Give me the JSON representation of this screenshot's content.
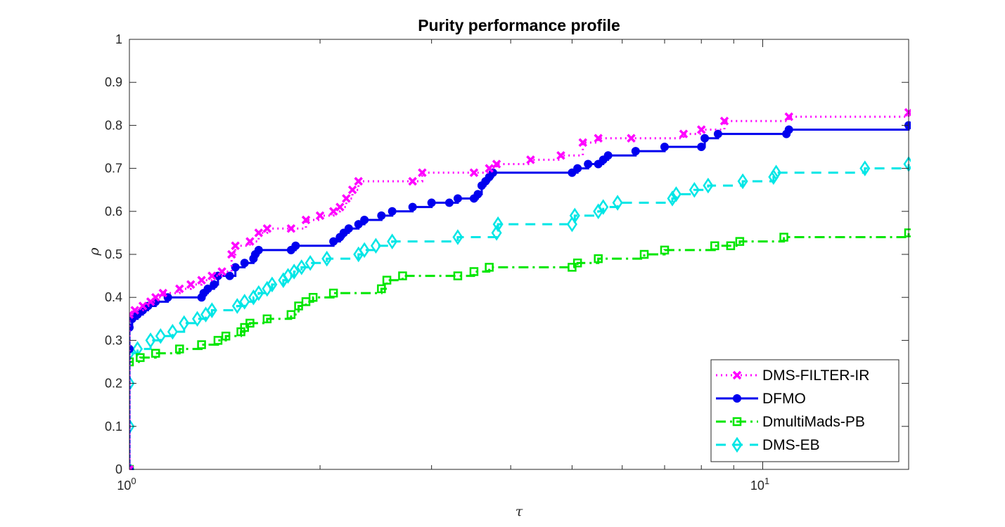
{
  "chart_data": {
    "type": "line",
    "step": true,
    "title": "Purity performance profile",
    "xlabel": "τ",
    "ylabel": "ρ",
    "xscale": "log",
    "xlim": [
      1,
      17
    ],
    "ylim": [
      0,
      1
    ],
    "x_ticks": [
      {
        "value": 1,
        "base": "10",
        "exp": "0"
      },
      {
        "value": 10,
        "base": "10",
        "exp": "1"
      }
    ],
    "y_ticks": [
      "0",
      "0.1",
      "0.2",
      "0.3",
      "0.4",
      "0.5",
      "0.6",
      "0.7",
      "0.8",
      "0.9",
      "1"
    ],
    "grid": false,
    "legend_position": "bottom-right",
    "series": [
      {
        "name": "DMS-FILTER-IR",
        "color": "#ff00ff",
        "line_style": "dotted",
        "marker": "x",
        "points": [
          [
            1.0,
            0.0
          ],
          [
            1.0,
            0.36
          ],
          [
            1.02,
            0.37
          ],
          [
            1.05,
            0.38
          ],
          [
            1.08,
            0.39
          ],
          [
            1.1,
            0.4
          ],
          [
            1.13,
            0.41
          ],
          [
            1.2,
            0.42
          ],
          [
            1.25,
            0.43
          ],
          [
            1.3,
            0.44
          ],
          [
            1.35,
            0.45
          ],
          [
            1.4,
            0.46
          ],
          [
            1.45,
            0.5
          ],
          [
            1.47,
            0.52
          ],
          [
            1.55,
            0.53
          ],
          [
            1.6,
            0.55
          ],
          [
            1.65,
            0.56
          ],
          [
            1.8,
            0.56
          ],
          [
            1.9,
            0.58
          ],
          [
            2.0,
            0.59
          ],
          [
            2.1,
            0.6
          ],
          [
            2.15,
            0.61
          ],
          [
            2.2,
            0.63
          ],
          [
            2.25,
            0.65
          ],
          [
            2.3,
            0.67
          ],
          [
            2.8,
            0.67
          ],
          [
            2.9,
            0.69
          ],
          [
            3.5,
            0.69
          ],
          [
            3.7,
            0.7
          ],
          [
            3.8,
            0.71
          ],
          [
            4.3,
            0.72
          ],
          [
            4.8,
            0.73
          ],
          [
            5.2,
            0.76
          ],
          [
            5.5,
            0.77
          ],
          [
            6.2,
            0.77
          ],
          [
            7.5,
            0.78
          ],
          [
            8.0,
            0.79
          ],
          [
            8.7,
            0.81
          ],
          [
            11.0,
            0.82
          ],
          [
            17.0,
            0.83
          ]
        ]
      },
      {
        "name": "DFMO",
        "color": "#0000ee",
        "line_style": "solid",
        "marker": "o",
        "points": [
          [
            1.0,
            0.0
          ],
          [
            1.0,
            0.28
          ],
          [
            1.0,
            0.33
          ],
          [
            1.01,
            0.35
          ],
          [
            1.03,
            0.36
          ],
          [
            1.05,
            0.37
          ],
          [
            1.07,
            0.38
          ],
          [
            1.1,
            0.39
          ],
          [
            1.15,
            0.4
          ],
          [
            1.3,
            0.4
          ],
          [
            1.31,
            0.41
          ],
          [
            1.33,
            0.42
          ],
          [
            1.36,
            0.43
          ],
          [
            1.38,
            0.45
          ],
          [
            1.44,
            0.45
          ],
          [
            1.47,
            0.47
          ],
          [
            1.52,
            0.48
          ],
          [
            1.57,
            0.49
          ],
          [
            1.58,
            0.5
          ],
          [
            1.6,
            0.51
          ],
          [
            1.8,
            0.51
          ],
          [
            1.83,
            0.52
          ],
          [
            2.1,
            0.53
          ],
          [
            2.15,
            0.54
          ],
          [
            2.18,
            0.55
          ],
          [
            2.22,
            0.56
          ],
          [
            2.3,
            0.57
          ],
          [
            2.35,
            0.58
          ],
          [
            2.5,
            0.59
          ],
          [
            2.6,
            0.6
          ],
          [
            2.8,
            0.61
          ],
          [
            3.0,
            0.62
          ],
          [
            3.2,
            0.62
          ],
          [
            3.3,
            0.63
          ],
          [
            3.5,
            0.63
          ],
          [
            3.55,
            0.64
          ],
          [
            3.6,
            0.66
          ],
          [
            3.65,
            0.67
          ],
          [
            3.7,
            0.68
          ],
          [
            3.75,
            0.69
          ],
          [
            5.0,
            0.69
          ],
          [
            5.1,
            0.7
          ],
          [
            5.3,
            0.71
          ],
          [
            5.5,
            0.71
          ],
          [
            5.6,
            0.72
          ],
          [
            5.7,
            0.73
          ],
          [
            6.3,
            0.74
          ],
          [
            7.0,
            0.75
          ],
          [
            8.0,
            0.75
          ],
          [
            8.1,
            0.77
          ],
          [
            8.5,
            0.78
          ],
          [
            10.9,
            0.78
          ],
          [
            11.0,
            0.79
          ],
          [
            17.0,
            0.8
          ]
        ]
      },
      {
        "name": "DmultiMads-PB",
        "color": "#00e600",
        "line_style": "dashdot",
        "marker": "s",
        "points": [
          [
            1.0,
            0.0
          ],
          [
            1.0,
            0.25
          ],
          [
            1.04,
            0.26
          ],
          [
            1.1,
            0.27
          ],
          [
            1.2,
            0.28
          ],
          [
            1.3,
            0.29
          ],
          [
            1.38,
            0.3
          ],
          [
            1.42,
            0.31
          ],
          [
            1.5,
            0.32
          ],
          [
            1.52,
            0.33
          ],
          [
            1.55,
            0.34
          ],
          [
            1.65,
            0.35
          ],
          [
            1.8,
            0.36
          ],
          [
            1.85,
            0.38
          ],
          [
            1.9,
            0.39
          ],
          [
            1.95,
            0.4
          ],
          [
            2.1,
            0.41
          ],
          [
            2.5,
            0.42
          ],
          [
            2.55,
            0.44
          ],
          [
            2.7,
            0.45
          ],
          [
            3.3,
            0.45
          ],
          [
            3.5,
            0.46
          ],
          [
            3.7,
            0.47
          ],
          [
            5.0,
            0.47
          ],
          [
            5.1,
            0.48
          ],
          [
            5.5,
            0.49
          ],
          [
            6.5,
            0.5
          ],
          [
            7.0,
            0.51
          ],
          [
            8.4,
            0.52
          ],
          [
            8.9,
            0.52
          ],
          [
            9.2,
            0.53
          ],
          [
            10.8,
            0.54
          ],
          [
            17.0,
            0.55
          ]
        ]
      },
      {
        "name": "DMS-EB",
        "color": "#00e6e6",
        "line_style": "dashed",
        "marker": "d",
        "points": [
          [
            1.0,
            0.0
          ],
          [
            1.0,
            0.1
          ],
          [
            1.0,
            0.2
          ],
          [
            1.0,
            0.27
          ],
          [
            1.03,
            0.28
          ],
          [
            1.08,
            0.3
          ],
          [
            1.12,
            0.31
          ],
          [
            1.17,
            0.32
          ],
          [
            1.22,
            0.34
          ],
          [
            1.28,
            0.35
          ],
          [
            1.32,
            0.36
          ],
          [
            1.35,
            0.37
          ],
          [
            1.48,
            0.38
          ],
          [
            1.52,
            0.39
          ],
          [
            1.57,
            0.4
          ],
          [
            1.6,
            0.41
          ],
          [
            1.65,
            0.42
          ],
          [
            1.68,
            0.43
          ],
          [
            1.75,
            0.44
          ],
          [
            1.78,
            0.45
          ],
          [
            1.82,
            0.46
          ],
          [
            1.87,
            0.47
          ],
          [
            1.93,
            0.48
          ],
          [
            2.05,
            0.49
          ],
          [
            2.3,
            0.5
          ],
          [
            2.35,
            0.51
          ],
          [
            2.45,
            0.52
          ],
          [
            2.6,
            0.53
          ],
          [
            3.3,
            0.54
          ],
          [
            3.8,
            0.55
          ],
          [
            3.82,
            0.57
          ],
          [
            5.0,
            0.57
          ],
          [
            5.05,
            0.59
          ],
          [
            5.5,
            0.6
          ],
          [
            5.6,
            0.61
          ],
          [
            5.9,
            0.62
          ],
          [
            7.2,
            0.63
          ],
          [
            7.3,
            0.64
          ],
          [
            7.8,
            0.65
          ],
          [
            8.2,
            0.66
          ],
          [
            9.3,
            0.67
          ],
          [
            10.4,
            0.68
          ],
          [
            10.5,
            0.69
          ],
          [
            14.5,
            0.7
          ],
          [
            17.0,
            0.71
          ]
        ]
      }
    ]
  }
}
